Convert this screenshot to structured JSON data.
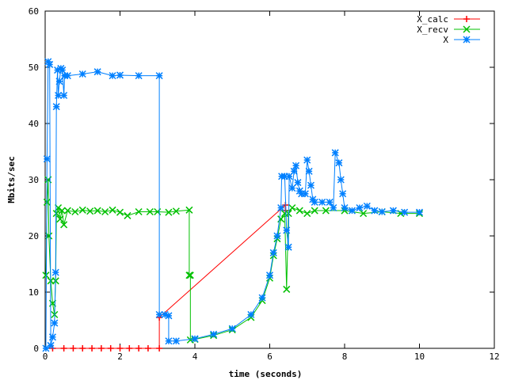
{
  "chart_data": {
    "type": "line",
    "title": "",
    "xlabel": "time (seconds)",
    "ylabel": "Mbits/sec",
    "xlim": [
      0,
      12
    ],
    "ylim": [
      0,
      60
    ],
    "xticks": [
      0,
      2,
      4,
      6,
      8,
      10,
      12
    ],
    "yticks": [
      0,
      10,
      20,
      30,
      40,
      50,
      60
    ],
    "grid": false,
    "legend_position": "top-right",
    "series": [
      {
        "name": "X_calc",
        "color": "#ff0000",
        "marker": "plus",
        "points": [
          [
            0.2,
            0
          ],
          [
            0.5,
            0
          ],
          [
            0.75,
            0
          ],
          [
            1.0,
            0
          ],
          [
            1.25,
            0
          ],
          [
            1.5,
            0
          ],
          [
            1.75,
            0
          ],
          [
            2.0,
            0
          ],
          [
            2.25,
            0
          ],
          [
            2.5,
            0
          ],
          [
            2.75,
            0
          ],
          [
            3.05,
            0
          ],
          [
            3.05,
            5.5
          ],
          [
            6.42,
            25.5
          ],
          [
            6.42,
            24.5
          ]
        ]
      },
      {
        "name": "X_recv",
        "color": "#00c000",
        "marker": "x",
        "points": [
          [
            0.02,
            13
          ],
          [
            0.05,
            26
          ],
          [
            0.08,
            30
          ],
          [
            0.1,
            20
          ],
          [
            0.15,
            12
          ],
          [
            0.2,
            8
          ],
          [
            0.25,
            6
          ],
          [
            0.28,
            12
          ],
          [
            0.3,
            24
          ],
          [
            0.35,
            25
          ],
          [
            0.4,
            23
          ],
          [
            0.45,
            24.5
          ],
          [
            0.5,
            22
          ],
          [
            0.6,
            24.5
          ],
          [
            0.8,
            24.3
          ],
          [
            1.0,
            24.6
          ],
          [
            1.2,
            24.4
          ],
          [
            1.4,
            24.5
          ],
          [
            1.6,
            24.3
          ],
          [
            1.8,
            24.6
          ],
          [
            2.0,
            24.2
          ],
          [
            2.2,
            23.6
          ],
          [
            2.5,
            24.3
          ],
          [
            2.8,
            24.3
          ],
          [
            3.0,
            24.3
          ],
          [
            3.3,
            24.2
          ],
          [
            3.5,
            24.4
          ],
          [
            3.85,
            24.6
          ],
          [
            3.85,
            13
          ],
          [
            3.88,
            13
          ],
          [
            3.88,
            1.5
          ],
          [
            4.0,
            1.6
          ],
          [
            4.5,
            2.3
          ],
          [
            5.0,
            3.3
          ],
          [
            5.5,
            5.5
          ],
          [
            5.8,
            8.5
          ],
          [
            6.0,
            12.5
          ],
          [
            6.1,
            16.5
          ],
          [
            6.2,
            19.5
          ],
          [
            6.3,
            23
          ],
          [
            6.4,
            24
          ],
          [
            6.45,
            10.5
          ],
          [
            6.5,
            24
          ],
          [
            6.6,
            25
          ],
          [
            6.8,
            24.5
          ],
          [
            7.0,
            24
          ],
          [
            7.2,
            24.5
          ],
          [
            7.5,
            24.5
          ],
          [
            8.0,
            24.5
          ],
          [
            8.5,
            24
          ],
          [
            9.0,
            24.3
          ],
          [
            9.5,
            24
          ],
          [
            10.0,
            24
          ]
        ]
      },
      {
        "name": "X",
        "color": "#0080ff",
        "marker": "star",
        "points": [
          [
            0.02,
            0
          ],
          [
            0.05,
            33.7
          ],
          [
            0.08,
            51
          ],
          [
            0.12,
            50.5
          ],
          [
            0.15,
            0.5
          ],
          [
            0.2,
            2
          ],
          [
            0.25,
            4.5
          ],
          [
            0.28,
            13.5
          ],
          [
            0.3,
            43
          ],
          [
            0.33,
            49.5
          ],
          [
            0.35,
            45
          ],
          [
            0.38,
            47.5
          ],
          [
            0.42,
            49.8
          ],
          [
            0.46,
            49.5
          ],
          [
            0.5,
            45
          ],
          [
            0.52,
            48.5
          ],
          [
            0.6,
            48.5
          ],
          [
            1.0,
            48.8
          ],
          [
            1.4,
            49.2
          ],
          [
            1.8,
            48.5
          ],
          [
            2.0,
            48.6
          ],
          [
            2.5,
            48.5
          ],
          [
            3.05,
            48.5
          ],
          [
            3.05,
            6
          ],
          [
            3.2,
            6
          ],
          [
            3.3,
            5.8
          ],
          [
            3.3,
            1.3
          ],
          [
            3.5,
            1.3
          ],
          [
            4.0,
            1.7
          ],
          [
            4.5,
            2.5
          ],
          [
            5.0,
            3.5
          ],
          [
            5.5,
            6
          ],
          [
            5.8,
            9
          ],
          [
            6.0,
            13
          ],
          [
            6.1,
            17
          ],
          [
            6.2,
            20
          ],
          [
            6.3,
            25
          ],
          [
            6.32,
            30.6
          ],
          [
            6.4,
            30.6
          ],
          [
            6.45,
            21
          ],
          [
            6.5,
            18
          ],
          [
            6.52,
            30.6
          ],
          [
            6.6,
            28.5
          ],
          [
            6.65,
            31.5
          ],
          [
            6.7,
            32.5
          ],
          [
            6.75,
            29.5
          ],
          [
            6.8,
            28
          ],
          [
            6.85,
            27.5
          ],
          [
            6.95,
            27.5
          ],
          [
            7.0,
            33.5
          ],
          [
            7.05,
            31.5
          ],
          [
            7.1,
            29
          ],
          [
            7.15,
            26.5
          ],
          [
            7.2,
            26
          ],
          [
            7.4,
            26
          ],
          [
            7.6,
            26
          ],
          [
            7.7,
            25
          ],
          [
            7.75,
            34.8
          ],
          [
            7.85,
            33
          ],
          [
            7.9,
            30
          ],
          [
            7.95,
            27.5
          ],
          [
            8.0,
            25
          ],
          [
            8.2,
            24.5
          ],
          [
            8.4,
            25
          ],
          [
            8.6,
            25.3
          ],
          [
            8.8,
            24.5
          ],
          [
            9.0,
            24.3
          ],
          [
            9.3,
            24.5
          ],
          [
            9.6,
            24.2
          ],
          [
            10.0,
            24.2
          ]
        ]
      }
    ]
  }
}
